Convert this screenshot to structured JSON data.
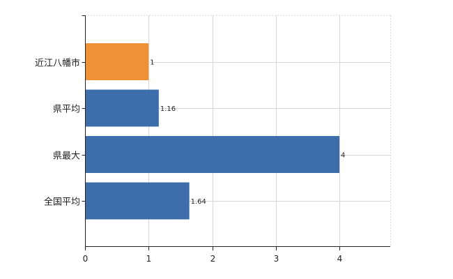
{
  "chart_data": {
    "type": "bar",
    "orientation": "horizontal",
    "categories": [
      "近江八幡市",
      "県平均",
      "県最大",
      "全国平均"
    ],
    "values": [
      1,
      1.16,
      4,
      1.64
    ],
    "value_labels": [
      "1",
      "1.16",
      "4",
      "1.64"
    ],
    "x_ticks": [
      0,
      1,
      2,
      3,
      4
    ],
    "xlim": [
      0,
      4.8
    ],
    "grid": true,
    "colors": {
      "highlight": "#ef9237",
      "default": "#3d6eab",
      "grid": "#d6d6d6",
      "axis": "#222222"
    },
    "highlight_index": 0
  }
}
